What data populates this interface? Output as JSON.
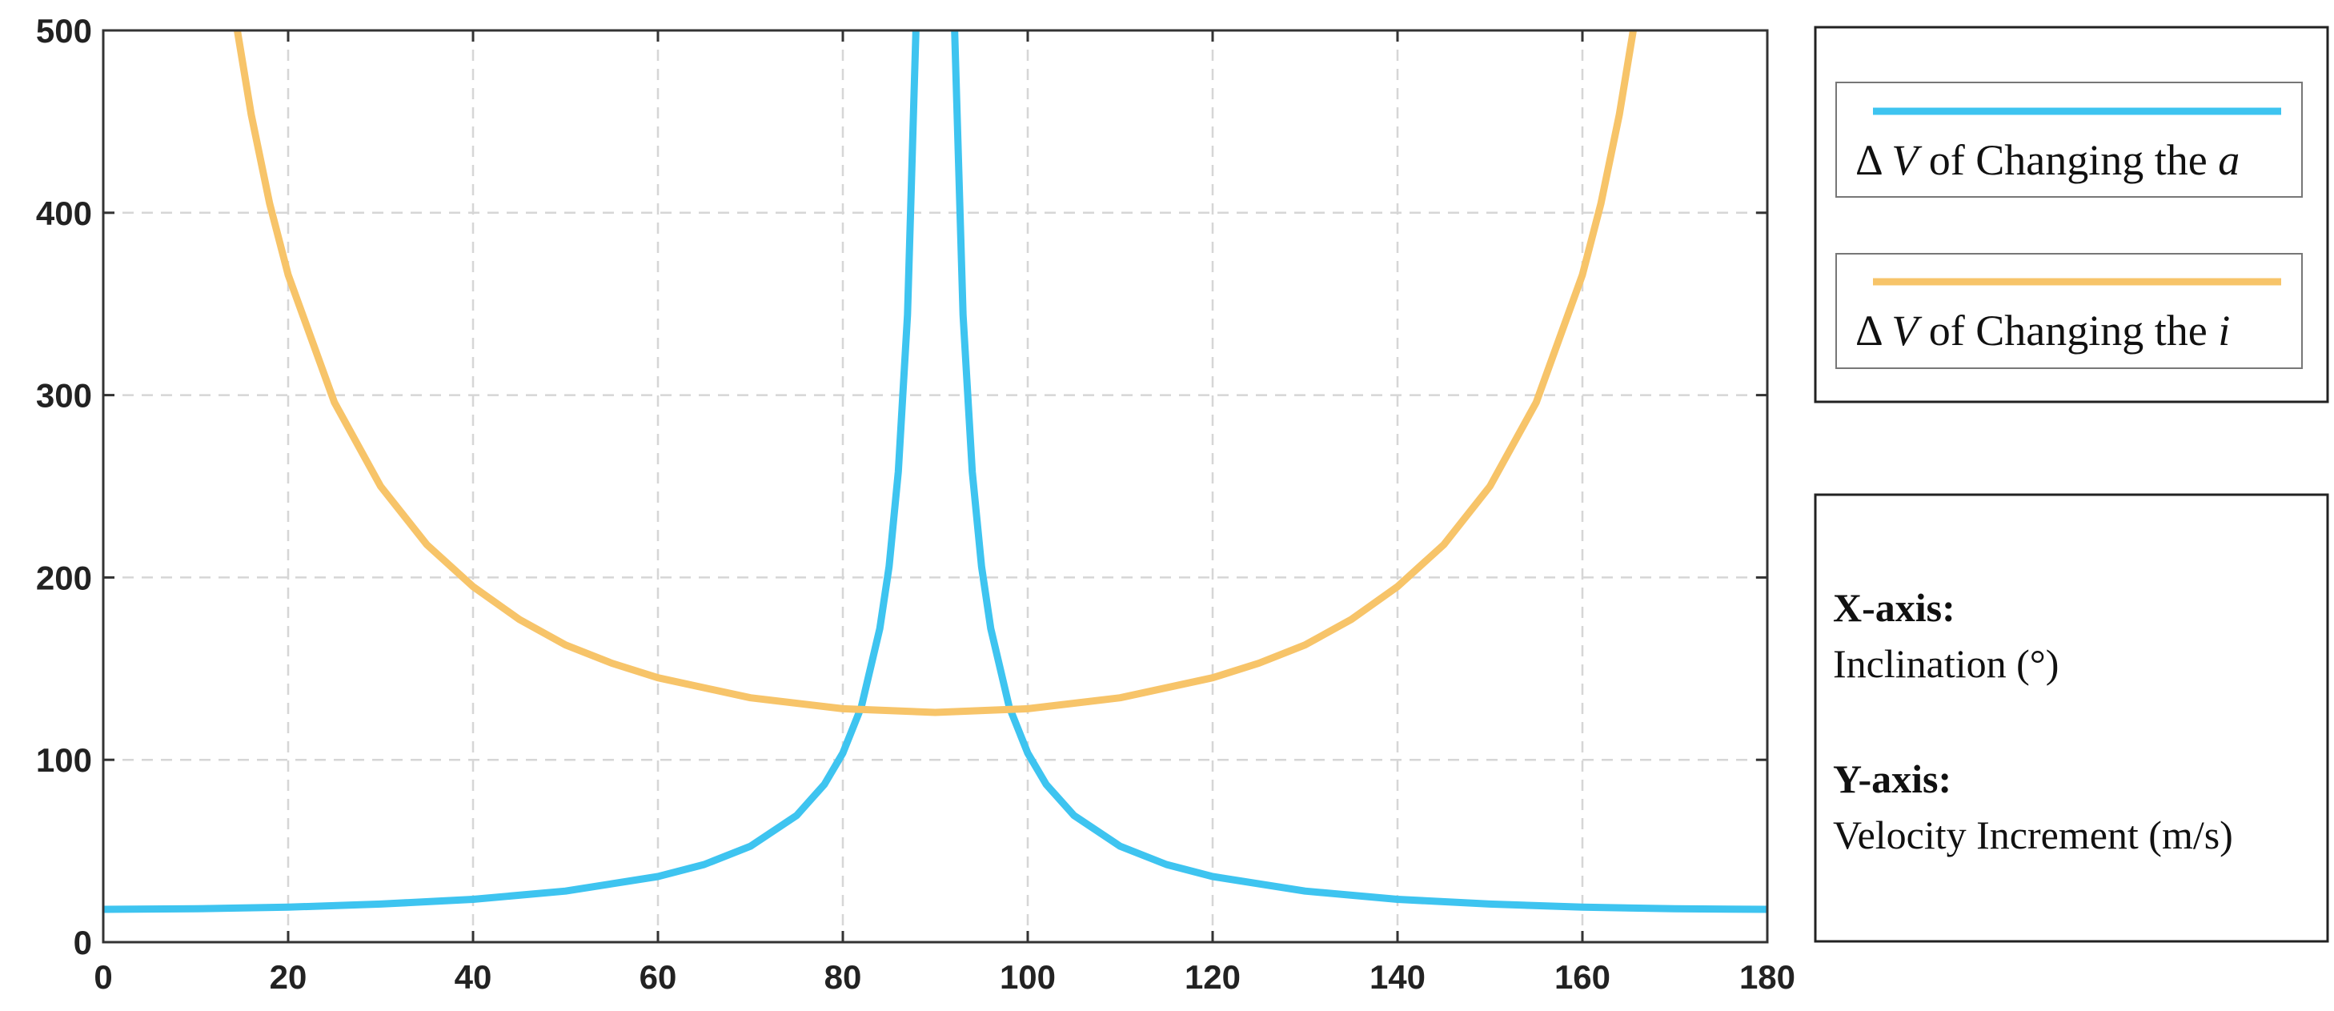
{
  "chart_data": {
    "type": "line",
    "title": "",
    "xlabel": "",
    "ylabel": "",
    "xlim": [
      0,
      180
    ],
    "ylim": [
      0,
      500
    ],
    "xticks": [
      "0",
      "20",
      "40",
      "60",
      "80",
      "100",
      "120",
      "140",
      "160",
      "180"
    ],
    "yticks": [
      "0",
      "100",
      "200",
      "300",
      "400",
      "500"
    ],
    "grid": true,
    "legend_position": "right",
    "series": [
      {
        "name_prefix": "Δ",
        "name_var": "V",
        "name_text": "of Changing the",
        "name_param": "a",
        "color": "#3EC4F0",
        "x": [
          0,
          10,
          20,
          30,
          40,
          50,
          60,
          65,
          70,
          75,
          78,
          80,
          82,
          84,
          85,
          86,
          87,
          88,
          92,
          93,
          94,
          95,
          96,
          98,
          100,
          102,
          105,
          110,
          115,
          120,
          130,
          140,
          150,
          160,
          170,
          180
        ],
        "y": [
          18,
          18.3,
          19.2,
          20.9,
          23.5,
          28,
          36,
          42.6,
          52.6,
          69.5,
          86.5,
          103.7,
          129,
          172,
          206,
          258,
          344,
          516,
          516,
          344,
          258,
          206,
          172,
          129,
          103.7,
          86.5,
          69.5,
          52.6,
          42.6,
          36,
          28,
          23.5,
          20.9,
          19.2,
          18.3,
          18
        ]
      },
      {
        "name_prefix": "Δ",
        "name_var": "V",
        "name_text": "of Changing the",
        "name_param": "i",
        "color": "#F7C469",
        "x": [
          14.5,
          16,
          18,
          20,
          25,
          30,
          35,
          40,
          45,
          50,
          55,
          60,
          70,
          80,
          90,
          100,
          110,
          120,
          125,
          130,
          135,
          140,
          145,
          150,
          155,
          160,
          162,
          164,
          165.5
        ],
        "y": [
          500,
          454,
          405,
          366,
          296,
          250,
          218,
          195,
          177,
          163,
          153,
          145,
          134,
          128,
          126,
          128,
          134,
          145,
          153,
          163,
          177,
          195,
          218,
          250,
          296,
          366,
          405,
          454,
          500
        ]
      }
    ]
  },
  "info_box": {
    "x_heading": "X-axis:",
    "x_text": "Inclination (°)",
    "y_heading": "Y-axis:",
    "y_text": "Velocity Increment (m/s)"
  }
}
